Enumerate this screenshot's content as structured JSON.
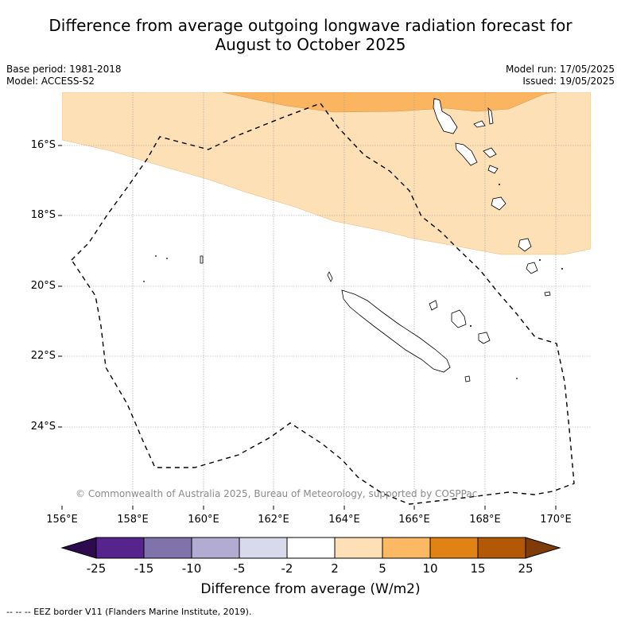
{
  "title": {
    "line1": "Difference from average outgoing longwave radiation forecast for",
    "line2": "August to October 2025"
  },
  "meta": {
    "base_period": "Base period: 1981-2018",
    "model": "Model: ACCESS-S2",
    "model_run": "Model run: 17/05/2025",
    "issued": "Issued: 19/05/2025"
  },
  "map": {
    "y_ticks": [
      "16°S",
      "18°S",
      "20°S",
      "22°S",
      "24°S"
    ],
    "x_ticks": [
      "156°E",
      "158°E",
      "160°E",
      "162°E",
      "164°E",
      "166°E",
      "168°E",
      "170°E"
    ],
    "copyright": "© Commonwealth of Australia 2025, Bureau of Meteorology, supported by COSPPac",
    "shading_colors": {
      "light_orange": "#fde0b6",
      "orange": "#fbb560"
    }
  },
  "colorbar": {
    "labels": [
      "-25",
      "-15",
      "-10",
      "-5",
      "-2",
      "2",
      "5",
      "10",
      "15",
      "25"
    ],
    "colors": [
      "#2d0b4e",
      "#55258d",
      "#8073ac",
      "#b2abd2",
      "#d8daeb",
      "#ffffff",
      "#fee0b6",
      "#fdb863",
      "#e08214",
      "#b35806",
      "#7f3b08"
    ],
    "title": "Difference from average (W/m2)"
  },
  "footer": "--  --  -- EEZ border V11 (Flanders Marine Institute, 2019)."
}
